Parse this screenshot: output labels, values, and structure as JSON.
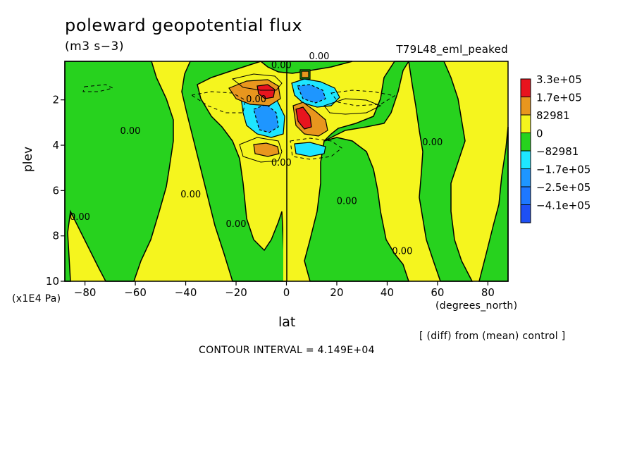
{
  "chart_data": {
    "type": "heatmap",
    "title": "poleward geopotential flux",
    "subtitle": "(m3 s−3)",
    "run_label": "T79L48_eml_peaked",
    "xlabel": "lat",
    "xunit": "(degrees_north)",
    "ylabel": "plev",
    "yunit": "(x1E4 Pa)",
    "xlim": [
      -88,
      88
    ],
    "ylim": [
      10,
      0.3
    ],
    "xticks": [
      -80,
      -60,
      -40,
      -20,
      0,
      20,
      40,
      60,
      80
    ],
    "yticks": [
      2,
      4,
      6,
      8,
      10
    ],
    "legend": {
      "position": "right",
      "entries": [
        {
          "label": "3.3e+05",
          "color": "#e8141e"
        },
        {
          "label": "1.7e+05",
          "color": "#e8961e"
        },
        {
          "label": "82981",
          "color": "#f5f51e"
        },
        {
          "label": "0",
          "color": "#27d21e"
        },
        {
          "label": "−82981",
          "color": "#1ee6ff"
        },
        {
          "label": "−1.7e+05",
          "color": "#1e96ff"
        },
        {
          "label": "−2.5e+05",
          "color": "#1e78ff"
        },
        {
          "label": "−4.1e+05",
          "color": "#1e50f5"
        }
      ]
    },
    "contour_labels": [
      {
        "text": "0.00",
        "x": -62,
        "y": 3.5
      },
      {
        "text": "0.00",
        "x": -38,
        "y": 6.3
      },
      {
        "text": "0.00",
        "x": -20,
        "y": 7.6
      },
      {
        "text": "0.00",
        "x": -82,
        "y": 7.3
      },
      {
        "text": "0.00",
        "x": -12,
        "y": 2.1
      },
      {
        "text": "0.00",
        "x": -2,
        "y": 0.6
      },
      {
        "text": "0.00",
        "x": 13,
        "y": 0.2
      },
      {
        "text": "0.00",
        "x": -2,
        "y": 4.9
      },
      {
        "text": "0.00",
        "x": 24,
        "y": 6.6
      },
      {
        "text": "0.00",
        "x": 46,
        "y": 8.8
      },
      {
        "text": "0.00",
        "x": 58,
        "y": 4.0
      }
    ]
  },
  "footer": {
    "diff_note": "[ (diff) from (mean) control ]",
    "contour_interval": "CONTOUR INTERVAL = 4.149E+04"
  }
}
